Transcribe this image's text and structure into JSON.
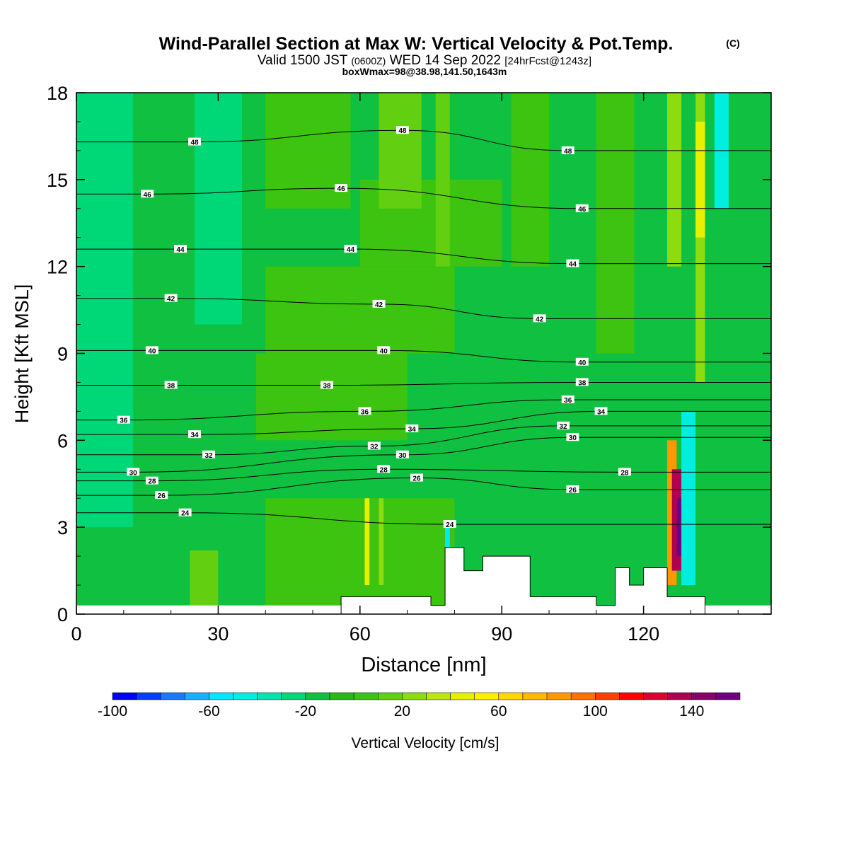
{
  "header": {
    "title": "Wind-Parallel Section at Max W: Vertical Velocity & Pot.Temp.",
    "copyright": "(C)",
    "valid_prefix": "Valid 1500 JST",
    "valid_utc": "(0600Z)",
    "valid_date": "WED 14 Sep 2022",
    "forecast": "[24hrFcst@1243z]",
    "boxwmax": "boxWmax=98@38.98,141.50,1643m"
  },
  "chart_data": {
    "type": "heatmap",
    "title": "Wind-Parallel Section at Max W: Vertical Velocity & Pot.Temp.",
    "xlabel": "Distance [nm]",
    "ylabel": "Height [Kft MSL]",
    "xlim": [
      0,
      147
    ],
    "ylim": [
      0,
      18
    ],
    "xticks": [
      "0",
      "30",
      "60",
      "90",
      "120"
    ],
    "yticks": [
      "0",
      "3",
      "6",
      "9",
      "12",
      "15",
      "18"
    ],
    "colorbar": {
      "label": "Vertical Velocity [cm/s]",
      "min": -100,
      "max": 160,
      "step": 10,
      "tick_labels": [
        "-100",
        "-60",
        "-20",
        "20",
        "60",
        "100",
        "140"
      ],
      "colors": [
        "#0000ff",
        "#0a3cff",
        "#1978ff",
        "#17b0ff",
        "#00e8ff",
        "#00eee0",
        "#00e5b0",
        "#00d878",
        "#10c040",
        "#28b818",
        "#3cc410",
        "#62d010",
        "#8cdc10",
        "#bce610",
        "#e6f000",
        "#fff000",
        "#ffd800",
        "#ffb800",
        "#ff9800",
        "#ff7000",
        "#ff4000",
        "#ff0000",
        "#e00030",
        "#b00050",
        "#880068",
        "#700080"
      ]
    },
    "potential_temperature_contours": {
      "units": "not printed",
      "labels": [
        {
          "value": "48",
          "x": 25,
          "z": 16.3
        },
        {
          "value": "48",
          "x": 69,
          "z": 16.7
        },
        {
          "value": "48",
          "x": 104,
          "z": 16.0
        },
        {
          "value": "46",
          "x": 15,
          "z": 14.5
        },
        {
          "value": "46",
          "x": 56,
          "z": 14.7
        },
        {
          "value": "46",
          "x": 107,
          "z": 14.0
        },
        {
          "value": "44",
          "x": 22,
          "z": 12.6
        },
        {
          "value": "44",
          "x": 58,
          "z": 12.6
        },
        {
          "value": "44",
          "x": 105,
          "z": 12.1
        },
        {
          "value": "42",
          "x": 20,
          "z": 10.9
        },
        {
          "value": "42",
          "x": 64,
          "z": 10.7
        },
        {
          "value": "42",
          "x": 98,
          "z": 10.2
        },
        {
          "value": "40",
          "x": 16,
          "z": 9.1
        },
        {
          "value": "40",
          "x": 65,
          "z": 9.1
        },
        {
          "value": "40",
          "x": 107,
          "z": 8.7
        },
        {
          "value": "38",
          "x": 20,
          "z": 7.9
        },
        {
          "value": "38",
          "x": 53,
          "z": 7.9
        },
        {
          "value": "38",
          "x": 107,
          "z": 8.0
        },
        {
          "value": "36",
          "x": 10,
          "z": 6.7
        },
        {
          "value": "36",
          "x": 61,
          "z": 7.0
        },
        {
          "value": "36",
          "x": 104,
          "z": 7.4
        },
        {
          "value": "34",
          "x": 25,
          "z": 6.2
        },
        {
          "value": "34",
          "x": 71,
          "z": 6.4
        },
        {
          "value": "34",
          "x": 111,
          "z": 7.0
        },
        {
          "value": "32",
          "x": 28,
          "z": 5.5
        },
        {
          "value": "32",
          "x": 63,
          "z": 5.8
        },
        {
          "value": "32",
          "x": 103,
          "z": 6.5
        },
        {
          "value": "30",
          "x": 12,
          "z": 4.9
        },
        {
          "value": "30",
          "x": 69,
          "z": 5.5
        },
        {
          "value": "30",
          "x": 105,
          "z": 6.1
        },
        {
          "value": "28",
          "x": 16,
          "z": 4.6
        },
        {
          "value": "28",
          "x": 65,
          "z": 5.0
        },
        {
          "value": "28",
          "x": 116,
          "z": 4.9
        },
        {
          "value": "26",
          "x": 18,
          "z": 4.1
        },
        {
          "value": "26",
          "x": 72,
          "z": 4.7
        },
        {
          "value": "26",
          "x": 105,
          "z": 4.3
        },
        {
          "value": "24",
          "x": 23,
          "z": 3.5
        },
        {
          "value": "24",
          "x": 79,
          "z": 3.1
        }
      ]
    },
    "vertical_velocity_cells": [
      {
        "x0": 0,
        "x1": 147,
        "z0": 0,
        "z1": 18,
        "w": -15
      },
      {
        "x0": 0,
        "x1": 12,
        "z0": 3,
        "z1": 18,
        "w": -22
      },
      {
        "x0": 25,
        "x1": 35,
        "z0": 10,
        "z1": 18,
        "w": -22
      },
      {
        "x0": 40,
        "x1": 58,
        "z0": 14,
        "z1": 18,
        "w": 0
      },
      {
        "x0": 40,
        "x1": 80,
        "z0": 9,
        "z1": 12,
        "w": 0
      },
      {
        "x0": 38,
        "x1": 70,
        "z0": 6,
        "z1": 9,
        "w": 0
      },
      {
        "x0": 60,
        "x1": 90,
        "z0": 12,
        "z1": 15,
        "w": 0
      },
      {
        "x0": 64,
        "x1": 73,
        "z0": 14,
        "z1": 18,
        "w": 12
      },
      {
        "x0": 76,
        "x1": 79,
        "z0": 12,
        "z1": 18,
        "w": 14
      },
      {
        "x0": 92,
        "x1": 100,
        "z0": 12,
        "z1": 18,
        "w": 8
      },
      {
        "x0": 110,
        "x1": 118,
        "z0": 9,
        "z1": 18,
        "w": 0
      },
      {
        "x0": 125,
        "x1": 128,
        "z0": 12,
        "z1": 18,
        "w": 25
      },
      {
        "x0": 131,
        "x1": 133,
        "z0": 8,
        "z1": 18,
        "w": 25
      },
      {
        "x0": 131,
        "x1": 133,
        "z0": 13,
        "z1": 17,
        "w": 45
      },
      {
        "x0": 135,
        "x1": 138,
        "z0": 14,
        "z1": 18,
        "w": -45
      },
      {
        "x0": 40,
        "x1": 80,
        "z0": 0,
        "z1": 4,
        "w": 0
      },
      {
        "x0": 24,
        "x1": 30,
        "z0": 0.3,
        "z1": 2.2,
        "w": 18
      },
      {
        "x0": 61,
        "x1": 62,
        "z0": 1,
        "z1": 4,
        "w": 40
      },
      {
        "x0": 64,
        "x1": 65,
        "z0": 1,
        "z1": 4,
        "w": 25
      },
      {
        "x0": 78,
        "x1": 79,
        "z0": 1,
        "z1": 3,
        "w": -60
      },
      {
        "x0": 125,
        "x1": 127,
        "z0": 1,
        "z1": 6,
        "w": 80
      },
      {
        "x0": 126,
        "x1": 128,
        "z0": 1.5,
        "z1": 5,
        "w": 130
      },
      {
        "x0": 127,
        "x1": 128,
        "z0": 2,
        "z1": 4,
        "w": 160
      },
      {
        "x0": 128,
        "x1": 131,
        "z0": 1,
        "z1": 7,
        "w": -45
      }
    ],
    "terrain_height": [
      {
        "x": 56,
        "z": 0.6
      },
      {
        "x": 70,
        "z": 0.6
      },
      {
        "x": 75,
        "z": 0.3
      },
      {
        "x": 78,
        "z": 2.3
      },
      {
        "x": 82,
        "z": 1.5
      },
      {
        "x": 86,
        "z": 2.0
      },
      {
        "x": 92,
        "z": 2.0
      },
      {
        "x": 96,
        "z": 0.6
      },
      {
        "x": 110,
        "z": 0.3
      },
      {
        "x": 114,
        "z": 1.6
      },
      {
        "x": 117,
        "z": 1.0
      },
      {
        "x": 120,
        "z": 1.6
      },
      {
        "x": 125,
        "z": 0.6
      },
      {
        "x": 133,
        "z": 0.3
      }
    ]
  }
}
